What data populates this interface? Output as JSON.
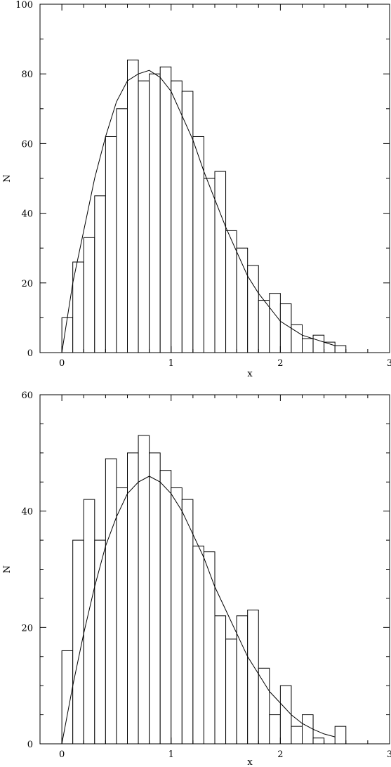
{
  "chart_data": [
    {
      "type": "bar",
      "xlabel": "x",
      "ylabel": "N",
      "xlim": [
        -0.2,
        3
      ],
      "ylim": [
        0,
        100
      ],
      "xticks": [
        0,
        1,
        2,
        3
      ],
      "xtick_labels": [
        "0",
        "1",
        "2",
        "3"
      ],
      "yticks": [
        0,
        20,
        40,
        60,
        80,
        100
      ],
      "ytick_labels": [
        "0",
        "20",
        "40",
        "60",
        "80",
        "100"
      ],
      "x_minor_step": 0.2,
      "y_minor_step": 10,
      "bin_width": 0.1,
      "bin_starts": [
        0.0,
        0.1,
        0.2,
        0.3,
        0.4,
        0.5,
        0.6,
        0.7,
        0.8,
        0.9,
        1.0,
        1.1,
        1.2,
        1.3,
        1.4,
        1.5,
        1.6,
        1.7,
        1.8,
        1.9,
        2.0,
        2.1,
        2.2,
        2.3,
        2.4,
        2.5
      ],
      "values": [
        10,
        26,
        33,
        45,
        62,
        70,
        84,
        78,
        80,
        82,
        78,
        75,
        62,
        50,
        52,
        35,
        30,
        25,
        15,
        17,
        14,
        8,
        4,
        5,
        3,
        2
      ],
      "curve": {
        "x": [
          0.0,
          0.1,
          0.2,
          0.3,
          0.4,
          0.5,
          0.6,
          0.7,
          0.8,
          0.9,
          1.0,
          1.1,
          1.2,
          1.3,
          1.4,
          1.5,
          1.6,
          1.7,
          1.8,
          1.9,
          2.0,
          2.1,
          2.2,
          2.3,
          2.4,
          2.5
        ],
        "y": [
          0,
          20,
          35,
          50,
          62,
          72,
          78,
          80,
          81,
          79,
          75,
          68,
          61,
          52,
          44,
          36,
          29,
          22,
          17,
          13,
          9,
          7,
          5,
          4,
          3,
          2
        ]
      }
    },
    {
      "type": "bar",
      "xlabel": "x",
      "ylabel": "N",
      "xlim": [
        -0.2,
        3
      ],
      "ylim": [
        0,
        60
      ],
      "xticks": [
        0,
        1,
        2,
        3
      ],
      "xtick_labels": [
        "0",
        "1",
        "2",
        "3"
      ],
      "yticks": [
        0,
        20,
        40,
        60
      ],
      "ytick_labels": [
        "0",
        "20",
        "40",
        "60"
      ],
      "x_minor_step": 0.2,
      "y_minor_step": 5,
      "bin_width": 0.1,
      "bin_starts": [
        0.0,
        0.1,
        0.2,
        0.3,
        0.4,
        0.5,
        0.6,
        0.7,
        0.8,
        0.9,
        1.0,
        1.1,
        1.2,
        1.3,
        1.4,
        1.5,
        1.6,
        1.7,
        1.8,
        1.9,
        2.0,
        2.1,
        2.2,
        2.3,
        2.4,
        2.5
      ],
      "values": [
        16,
        35,
        42,
        35,
        49,
        44,
        50,
        53,
        50,
        47,
        44,
        42,
        34,
        33,
        22,
        18,
        22,
        23,
        13,
        5,
        10,
        3,
        5,
        1,
        0,
        3
      ],
      "curve": {
        "x": [
          0.0,
          0.1,
          0.2,
          0.3,
          0.4,
          0.5,
          0.6,
          0.7,
          0.8,
          0.9,
          1.0,
          1.1,
          1.2,
          1.3,
          1.4,
          1.5,
          1.6,
          1.7,
          1.8,
          1.9,
          2.0,
          2.1,
          2.2,
          2.3,
          2.4,
          2.5
        ],
        "y": [
          0,
          10,
          19,
          27,
          34,
          39,
          43,
          45,
          46,
          45,
          43,
          40,
          36,
          32,
          27,
          23,
          19,
          15,
          12,
          9,
          7,
          5,
          3.5,
          2.5,
          1.7,
          1.2
        ]
      }
    }
  ]
}
